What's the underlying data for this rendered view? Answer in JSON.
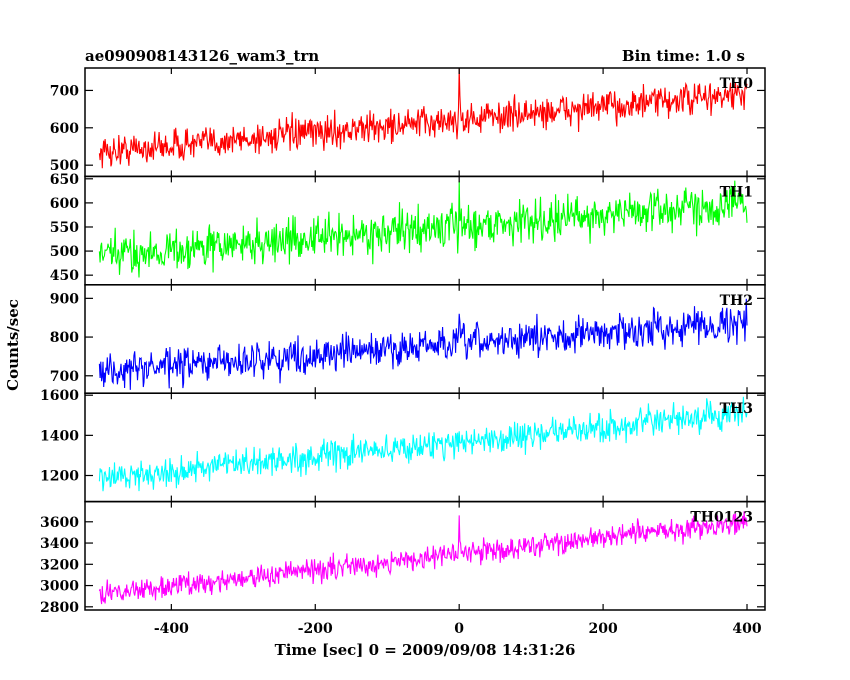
{
  "header": {
    "title": "ae090908143126_wam3_trn",
    "bin_time": "Bin time: 1.0 s"
  },
  "chart_data": {
    "type": "line",
    "xlabel": "Time [sec] 0 = 2009/09/08 14:31:26",
    "ylabel": "Counts/sec",
    "xlim": [
      -520,
      425
    ],
    "x_ticks": [
      -400,
      -200,
      0,
      200,
      400
    ],
    "x_range": [
      -500,
      400
    ],
    "burst_time": 0,
    "panels": [
      {
        "name": "TH0",
        "color": "#ff0000",
        "ylim": [
          470,
          760
        ],
        "y_ticks": [
          500,
          600,
          700
        ],
        "start": 535,
        "end": 690,
        "noise": 48,
        "spike_peak": 760
      },
      {
        "name": "TH1",
        "color": "#00ff00",
        "ylim": [
          430,
          655
        ],
        "y_ticks": [
          450,
          500,
          550,
          600,
          650
        ],
        "start": 490,
        "end": 600,
        "noise": 48,
        "spike_peak": 645
      },
      {
        "name": "TH2",
        "color": "#0000ff",
        "ylim": [
          655,
          935
        ],
        "y_ticks": [
          700,
          800,
          900
        ],
        "start": 710,
        "end": 840,
        "noise": 50,
        "spike_peak": 860
      },
      {
        "name": "TH3",
        "color": "#00ffff",
        "ylim": [
          1070,
          1610
        ],
        "y_ticks": [
          1200,
          1400,
          1600
        ],
        "start": 1185,
        "end": 1510,
        "noise": 80,
        "spike_peak": 1420
      },
      {
        "name": "TH0123",
        "color": "#ff00ff",
        "ylim": [
          2770,
          3790
        ],
        "y_ticks": [
          2800,
          3000,
          3200,
          3400,
          3600
        ],
        "start": 2920,
        "end": 3600,
        "noise": 120,
        "spike_peak": 3660
      }
    ]
  }
}
